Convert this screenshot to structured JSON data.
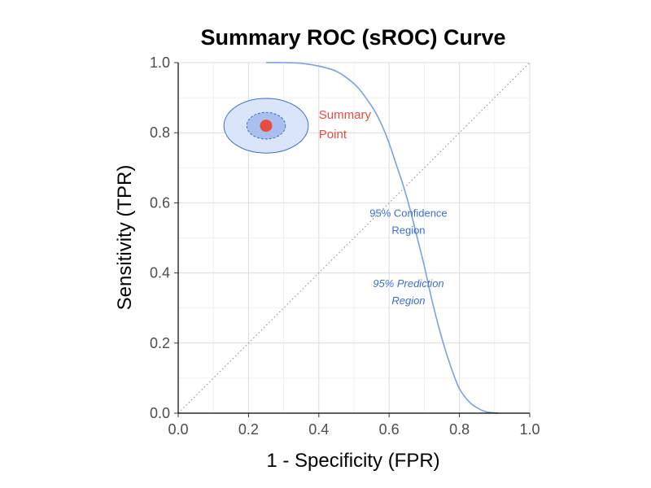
{
  "chart_data": {
    "type": "line",
    "title": "Summary ROC (sROC) Curve",
    "xlabel": "1 - Specificity (FPR)",
    "ylabel": "Sensitivity (TPR)",
    "xlim": [
      0,
      1
    ],
    "ylim": [
      0,
      1
    ],
    "x_ticks": [
      "0.0",
      "0.2",
      "0.4",
      "0.6",
      "0.8",
      "1.0"
    ],
    "y_ticks": [
      "0.0",
      "0.2",
      "0.4",
      "0.6",
      "0.8",
      "1.0"
    ],
    "grid": true,
    "diagonal_reference": true,
    "sroc_curve": {
      "color": "#7b9fe8",
      "x": [
        0.25,
        0.3,
        0.35,
        0.4,
        0.45,
        0.5,
        0.53,
        0.56,
        0.58,
        0.6,
        0.62,
        0.64,
        0.66,
        0.68,
        0.7,
        0.72,
        0.74,
        0.76,
        0.78,
        0.8,
        0.83,
        0.86,
        0.88,
        0.91
      ],
      "y": [
        1.0,
        1.0,
        0.998,
        0.99,
        0.975,
        0.94,
        0.905,
        0.86,
        0.82,
        0.77,
        0.71,
        0.65,
        0.58,
        0.5,
        0.42,
        0.33,
        0.25,
        0.18,
        0.12,
        0.07,
        0.03,
        0.01,
        0.003,
        0.0
      ]
    },
    "summary_point": {
      "x": 0.25,
      "y": 0.82,
      "color": "#e74c3c"
    },
    "confidence_region": {
      "center": [
        0.25,
        0.82
      ],
      "rx": 0.055,
      "ry": 0.038,
      "fill": "#a9c0ee",
      "stroke": "#3a6fd8"
    },
    "prediction_region": {
      "center": [
        0.25,
        0.82
      ],
      "rx": 0.12,
      "ry": 0.078,
      "fill": "#dbe5fa",
      "stroke": "#3a6fd8"
    },
    "annotations": [
      {
        "name": "summary-point-label",
        "lines": [
          "Summary",
          "Point"
        ],
        "x": 0.4,
        "y": 0.84,
        "style": "summary"
      },
      {
        "name": "confidence-region-label",
        "lines": [
          "95% Confidence",
          "Region"
        ],
        "x": 0.655,
        "y": 0.56,
        "style": "blue"
      },
      {
        "name": "prediction-region-label",
        "lines": [
          "95% Prediction",
          "Region"
        ],
        "x": 0.655,
        "y": 0.36,
        "style": "blue-italic"
      }
    ]
  }
}
